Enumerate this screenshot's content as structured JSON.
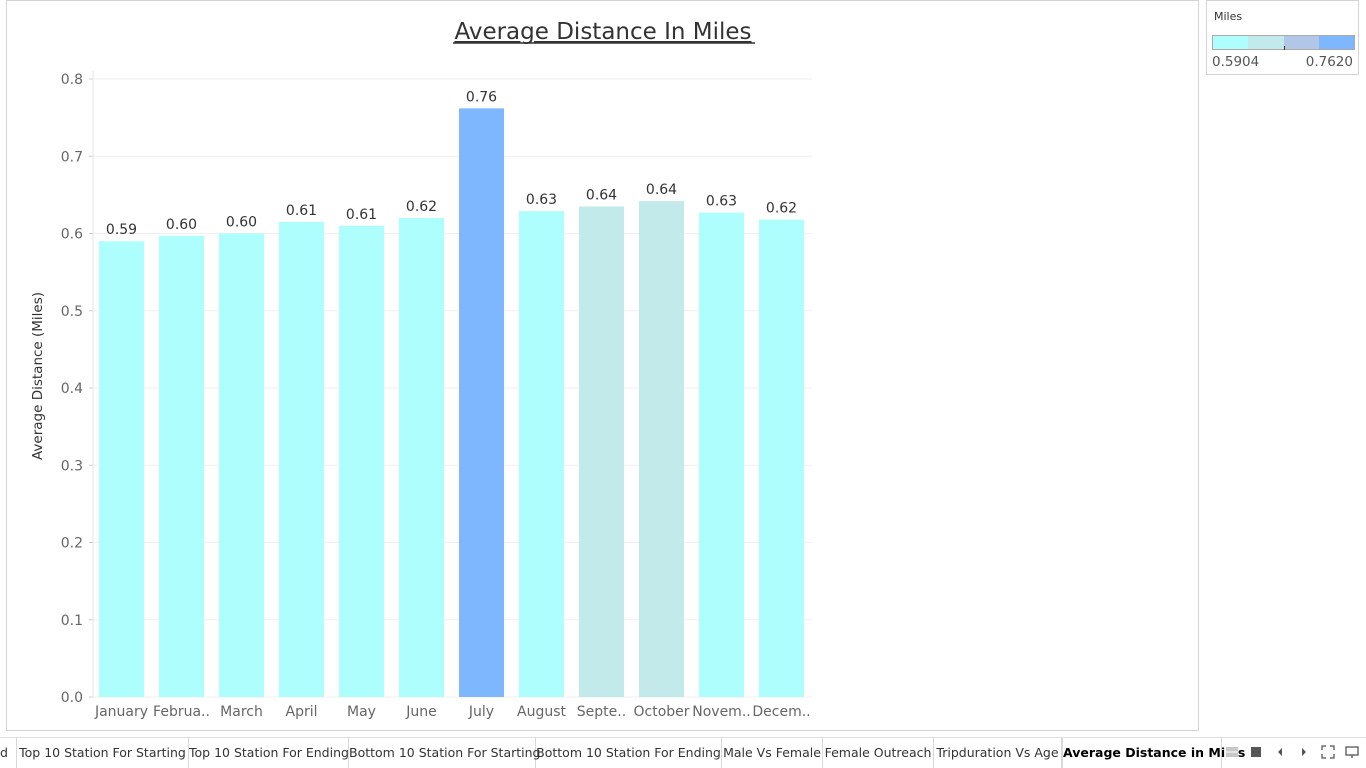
{
  "chart_data": {
    "type": "bar",
    "title": "Average Distance In Miles",
    "xlabel": "",
    "ylabel": "Average Distance (Miles)",
    "ylim": [
      0,
      0.8
    ],
    "yticks": [
      "0.0",
      "0.1",
      "0.2",
      "0.3",
      "0.4",
      "0.5",
      "0.6",
      "0.7",
      "0.8"
    ],
    "ytick_values": [
      0,
      0.1,
      0.2,
      0.3,
      0.4,
      0.5,
      0.6,
      0.7,
      0.8
    ],
    "categories": [
      "January",
      "Februa..",
      "March",
      "April",
      "May",
      "June",
      "July",
      "August",
      "Septe..",
      "October",
      "Novem..",
      "Decem.."
    ],
    "values": [
      0.59,
      0.597,
      0.6,
      0.615,
      0.61,
      0.62,
      0.762,
      0.629,
      0.635,
      0.642,
      0.627,
      0.618
    ],
    "data_labels": [
      "0.59",
      "0.60",
      "0.60",
      "0.61",
      "0.61",
      "0.62",
      "0.76",
      "0.63",
      "0.64",
      "0.64",
      "0.63",
      "0.62"
    ],
    "bar_colors": [
      "#adfefc",
      "#adfefc",
      "#adfefc",
      "#adfefc",
      "#adfefc",
      "#adfefc",
      "#7eb7fe",
      "#adfefc",
      "#c2eaea",
      "#c2eaea",
      "#adfefc",
      "#adfefc"
    ],
    "grid": true
  },
  "legend": {
    "title": "Miles",
    "min_label": "0.5904",
    "max_label": "0.7620",
    "ramp_colors": [
      "#adfefc",
      "#c2eaea",
      "#b2c7e7",
      "#7eb7fe"
    ]
  },
  "tabs": [
    {
      "label": "d"
    },
    {
      "label": "Top 10 Station For Starting"
    },
    {
      "label": "Top 10 Station For Ending"
    },
    {
      "label": "Bottom 10 Station For Starting"
    },
    {
      "label": "Bottom 10 Station For Ending"
    },
    {
      "label": "Male Vs Female"
    },
    {
      "label": "Female Outreach"
    },
    {
      "label": "Tripduration Vs Age"
    },
    {
      "label": "Average Distance in Miles",
      "active": true
    }
  ],
  "controls": [
    "sheet-sorter-icon",
    "filmstrip-icon",
    "prev-tab-icon",
    "next-tab-icon",
    "fullscreen-icon",
    "presentation-icon"
  ]
}
